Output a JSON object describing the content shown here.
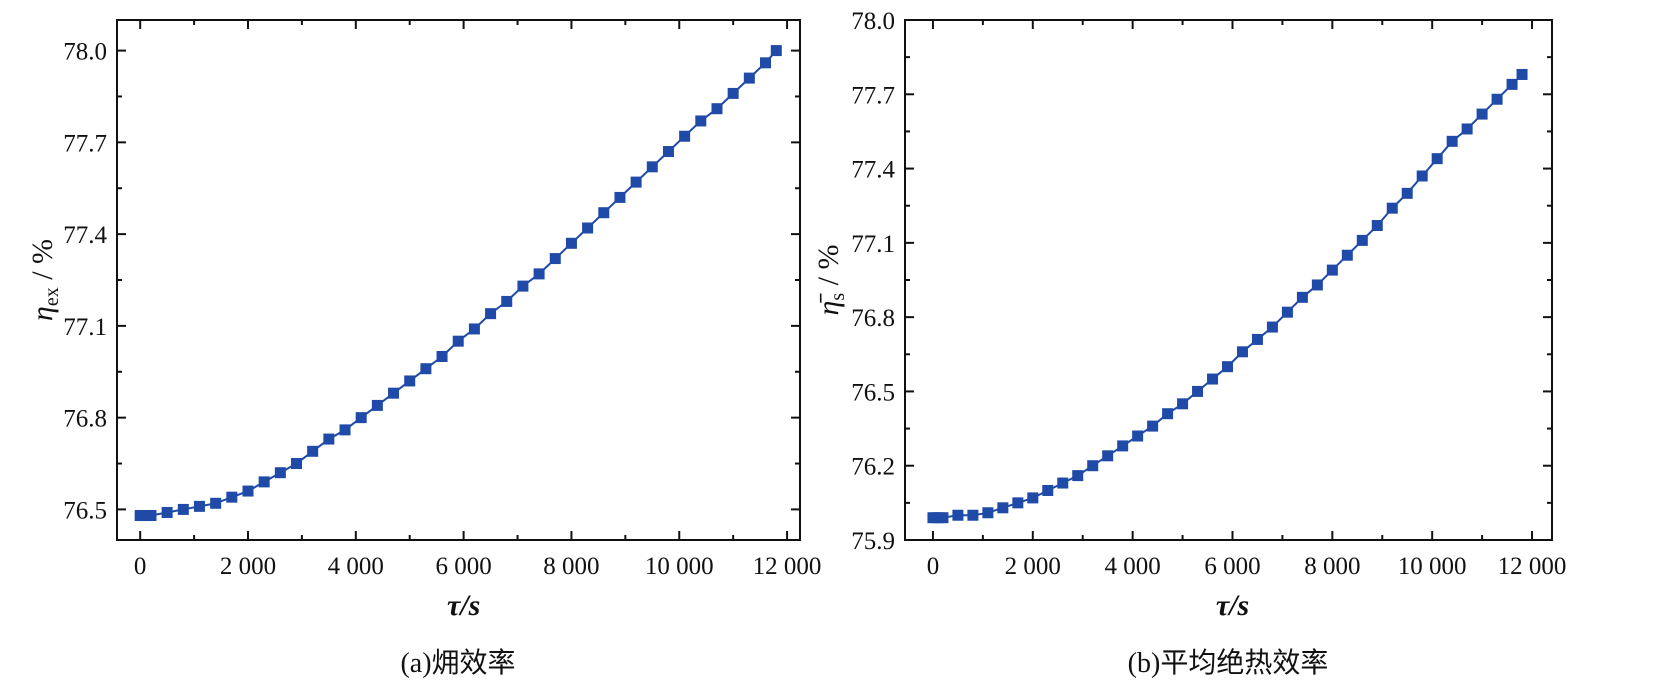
{
  "chart_data": [
    {
      "type": "line",
      "caption": "(a)㶲效率",
      "xlabel": "τ/s",
      "ylabel": {
        "symbol": "η",
        "subscript": "ex",
        "unit": " / %"
      },
      "x_ticks": [
        "0",
        "2 000",
        "4 000",
        "6 000",
        "8 000",
        "10 000",
        "12 000"
      ],
      "x_tick_values": [
        0,
        2000,
        4000,
        6000,
        8000,
        10000,
        12000
      ],
      "y_ticks": [
        "76.5",
        "76.8",
        "77.1",
        "77.4",
        "77.7",
        "78.0"
      ],
      "y_tick_values": [
        76.5,
        76.8,
        77.1,
        77.4,
        77.7,
        78.0
      ],
      "xlim": [
        -430,
        12240
      ],
      "ylim": [
        76.4,
        78.1
      ],
      "grid": false,
      "marker": "square",
      "color": "#1f4aa8",
      "series": [
        {
          "x": [
            0,
            100,
            200,
            500,
            800,
            1100,
            1400,
            1700,
            2000,
            2300,
            2600,
            2900,
            3200,
            3500,
            3800,
            4100,
            4400,
            4700,
            5000,
            5300,
            5600,
            5900,
            6200,
            6500,
            6800,
            7100,
            7400,
            7700,
            8000,
            8300,
            8600,
            8900,
            9200,
            9500,
            9800,
            10100,
            10400,
            10700,
            11000,
            11300,
            11600,
            11800
          ],
          "y": [
            76.48,
            76.48,
            76.48,
            76.49,
            76.5,
            76.51,
            76.52,
            76.54,
            76.56,
            76.59,
            76.62,
            76.65,
            76.69,
            76.73,
            76.76,
            76.8,
            76.84,
            76.88,
            76.92,
            76.96,
            77.0,
            77.05,
            77.09,
            77.14,
            77.18,
            77.23,
            77.27,
            77.32,
            77.37,
            77.42,
            77.47,
            77.52,
            77.57,
            77.62,
            77.67,
            77.72,
            77.77,
            77.81,
            77.86,
            77.91,
            77.96,
            78.0
          ]
        }
      ]
    },
    {
      "type": "line",
      "caption": "(b)平均绝热效率",
      "xlabel": "τ/s",
      "ylabel": {
        "symbol": "η̄",
        "subscript": "s",
        "unit": " / %"
      },
      "x_ticks": [
        "0",
        "2 000",
        "4 000",
        "6 000",
        "8 000",
        "10 000",
        "12 000"
      ],
      "x_tick_values": [
        0,
        2000,
        4000,
        6000,
        8000,
        10000,
        12000
      ],
      "y_ticks": [
        "75.9",
        "76.2",
        "76.5",
        "76.8",
        "77.1",
        "77.4",
        "77.7",
        "78.0"
      ],
      "y_tick_values": [
        75.9,
        76.2,
        76.5,
        76.8,
        77.1,
        77.4,
        77.7,
        78.0
      ],
      "xlim": [
        -560,
        12400
      ],
      "ylim": [
        75.9,
        78.0
      ],
      "grid": false,
      "marker": "square",
      "color": "#1f4aa8",
      "series": [
        {
          "x": [
            0,
            100,
            200,
            500,
            800,
            1100,
            1400,
            1700,
            2000,
            2300,
            2600,
            2900,
            3200,
            3500,
            3800,
            4100,
            4400,
            4700,
            5000,
            5300,
            5600,
            5900,
            6200,
            6500,
            6800,
            7100,
            7400,
            7700,
            8000,
            8300,
            8600,
            8900,
            9200,
            9500,
            9800,
            10100,
            10400,
            10700,
            11000,
            11300,
            11600,
            11800
          ],
          "y": [
            75.99,
            75.99,
            75.99,
            76.0,
            76.0,
            76.01,
            76.03,
            76.05,
            76.07,
            76.1,
            76.13,
            76.16,
            76.2,
            76.24,
            76.28,
            76.32,
            76.36,
            76.41,
            76.45,
            76.5,
            76.55,
            76.6,
            76.66,
            76.71,
            76.76,
            76.82,
            76.88,
            76.93,
            76.99,
            77.05,
            77.11,
            77.17,
            77.24,
            77.3,
            77.37,
            77.44,
            77.51,
            77.56,
            77.62,
            77.68,
            77.74,
            77.78
          ]
        }
      ]
    }
  ]
}
